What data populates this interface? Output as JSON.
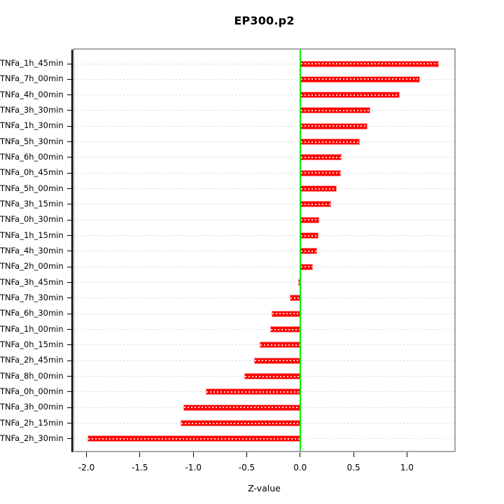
{
  "chart_data": {
    "type": "bar",
    "orientation": "horizontal",
    "title": "EP300.p2",
    "xlabel": "Z-value",
    "ylabel": "",
    "categories": [
      "TNFa_1h_45min",
      "TNFa_7h_00min",
      "TNFa_4h_00min",
      "TNFa_3h_30min",
      "TNFa_1h_30min",
      "TNFa_5h_30min",
      "TNFa_6h_00min",
      "TNFa_0h_45min",
      "TNFa_5h_00min",
      "TNFa_3h_15min",
      "TNFa_0h_30min",
      "TNFa_1h_15min",
      "TNFa_4h_30min",
      "TNFa_2h_00min",
      "TNFa_3h_45min",
      "TNFa_7h_30min",
      "TNFa_6h_30min",
      "TNFa_1h_00min",
      "TNFa_0h_15min",
      "TNFa_2h_45min",
      "TNFa_8h_00min",
      "TNFa_0h_00min",
      "TNFa_3h_00min",
      "TNFa_2h_15min",
      "TNFa_2h_30min"
    ],
    "values": [
      1.3,
      1.12,
      0.93,
      0.66,
      0.63,
      0.56,
      0.39,
      0.38,
      0.34,
      0.29,
      0.18,
      0.17,
      0.16,
      0.12,
      -0.02,
      -0.1,
      -0.27,
      -0.28,
      -0.38,
      -0.43,
      -0.52,
      -0.88,
      -1.09,
      -1.12,
      -1.99
    ],
    "x_ticks": [
      -2.0,
      -1.5,
      -1.0,
      -0.5,
      0.0,
      0.5,
      1.0
    ],
    "x_tick_labels": [
      "-2.0",
      "-1.5",
      "-1.0",
      "-0.5",
      "0.0",
      "0.5",
      "1.0"
    ],
    "xlim": [
      -2.115,
      1.443
    ],
    "zero_line_at": 0,
    "grid": "dotted horizontal line per category",
    "legend": "none",
    "colors": {
      "bar_fill": "#fe0000",
      "bar_edge": "#ff8f8f",
      "zero_line": "#00ee00",
      "grid_line": "#d6d6d6",
      "frame": "#a6a6a6",
      "text": "#000000",
      "background": "#ffffff"
    }
  }
}
